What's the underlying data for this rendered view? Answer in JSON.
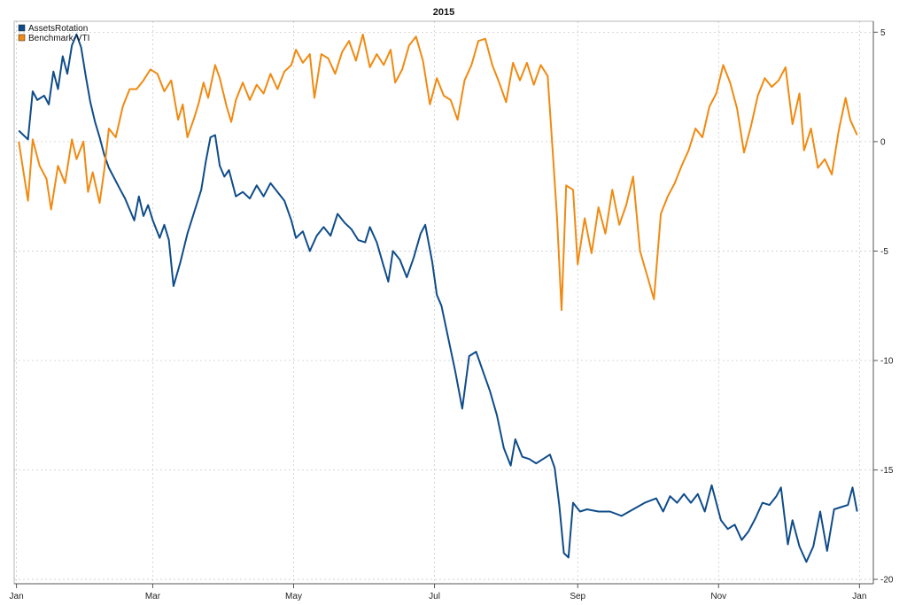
{
  "chart_data": {
    "type": "line",
    "title": "2015",
    "xlabel": "",
    "ylabel": "",
    "x_tick_labels": [
      "Jan",
      "Mar",
      "May",
      "Jul",
      "Sep",
      "Nov",
      "Jan"
    ],
    "x_tick_dates": [
      "2015-01-01",
      "2015-03-01",
      "2015-05-01",
      "2015-07-01",
      "2015-09-01",
      "2015-11-01",
      "2016-01-01"
    ],
    "xlim": [
      "2014-12-31",
      "2016-01-07"
    ],
    "y_ticks": [
      5,
      0,
      -5,
      -10,
      -15,
      -20
    ],
    "ylim": [
      -20.2,
      5.5
    ],
    "y_axis_side": "right",
    "grid": true,
    "legend_position": "top-left",
    "series": [
      {
        "name": "AssetsRotation",
        "color": "#0f4c8a",
        "points": [
          [
            "2015-01-02",
            0.5
          ],
          [
            "2015-01-06",
            0.1
          ],
          [
            "2015-01-08",
            2.3
          ],
          [
            "2015-01-10",
            1.9
          ],
          [
            "2015-01-13",
            2.1
          ],
          [
            "2015-01-15",
            1.7
          ],
          [
            "2015-01-17",
            3.2
          ],
          [
            "2015-01-19",
            2.4
          ],
          [
            "2015-01-21",
            3.9
          ],
          [
            "2015-01-23",
            3.1
          ],
          [
            "2015-01-25",
            4.4
          ],
          [
            "2015-01-27",
            4.9
          ],
          [
            "2015-01-29",
            4.3
          ],
          [
            "2015-01-31",
            3.0
          ],
          [
            "2015-02-02",
            1.8
          ],
          [
            "2015-02-04",
            0.9
          ],
          [
            "2015-02-06",
            0.2
          ],
          [
            "2015-02-08",
            -0.6
          ],
          [
            "2015-02-10",
            -1.2
          ],
          [
            "2015-02-12",
            -1.6
          ],
          [
            "2015-02-15",
            -2.2
          ],
          [
            "2015-02-17",
            -2.6
          ],
          [
            "2015-02-19",
            -3.1
          ],
          [
            "2015-02-21",
            -3.6
          ],
          [
            "2015-02-23",
            -2.5
          ],
          [
            "2015-02-25",
            -3.4
          ],
          [
            "2015-02-27",
            -2.9
          ],
          [
            "2015-03-01",
            -3.6
          ],
          [
            "2015-03-04",
            -4.4
          ],
          [
            "2015-03-06",
            -3.8
          ],
          [
            "2015-03-08",
            -4.5
          ],
          [
            "2015-03-10",
            -6.6
          ],
          [
            "2015-03-13",
            -5.5
          ],
          [
            "2015-03-16",
            -4.2
          ],
          [
            "2015-03-19",
            -3.2
          ],
          [
            "2015-03-22",
            -2.2
          ],
          [
            "2015-03-24",
            -0.9
          ],
          [
            "2015-03-26",
            0.2
          ],
          [
            "2015-03-28",
            0.3
          ],
          [
            "2015-03-30",
            -1.1
          ],
          [
            "2015-04-01",
            -1.6
          ],
          [
            "2015-04-03",
            -1.3
          ],
          [
            "2015-04-06",
            -2.5
          ],
          [
            "2015-04-09",
            -2.3
          ],
          [
            "2015-04-12",
            -2.6
          ],
          [
            "2015-04-15",
            -2.0
          ],
          [
            "2015-04-18",
            -2.5
          ],
          [
            "2015-04-21",
            -1.9
          ],
          [
            "2015-04-24",
            -2.3
          ],
          [
            "2015-04-27",
            -2.7
          ],
          [
            "2015-04-30",
            -3.6
          ],
          [
            "2015-05-02",
            -4.4
          ],
          [
            "2015-05-05",
            -4.1
          ],
          [
            "2015-05-08",
            -5.0
          ],
          [
            "2015-05-11",
            -4.3
          ],
          [
            "2015-05-14",
            -3.9
          ],
          [
            "2015-05-17",
            -4.3
          ],
          [
            "2015-05-20",
            -3.3
          ],
          [
            "2015-05-23",
            -3.7
          ],
          [
            "2015-05-26",
            -4.0
          ],
          [
            "2015-05-29",
            -4.5
          ],
          [
            "2015-06-01",
            -4.6
          ],
          [
            "2015-06-03",
            -3.9
          ],
          [
            "2015-06-06",
            -4.6
          ],
          [
            "2015-06-09",
            -5.7
          ],
          [
            "2015-06-11",
            -6.4
          ],
          [
            "2015-06-13",
            -5.0
          ],
          [
            "2015-06-16",
            -5.4
          ],
          [
            "2015-06-19",
            -6.2
          ],
          [
            "2015-06-22",
            -5.3
          ],
          [
            "2015-06-25",
            -4.2
          ],
          [
            "2015-06-27",
            -3.8
          ],
          [
            "2015-06-30",
            -5.5
          ],
          [
            "2015-07-02",
            -7.0
          ],
          [
            "2015-07-04",
            -7.5
          ],
          [
            "2015-07-07",
            -9.0
          ],
          [
            "2015-07-10",
            -10.5
          ],
          [
            "2015-07-13",
            -12.2
          ],
          [
            "2015-07-16",
            -9.8
          ],
          [
            "2015-07-19",
            -9.6
          ],
          [
            "2015-07-22",
            -10.5
          ],
          [
            "2015-07-25",
            -11.4
          ],
          [
            "2015-07-28",
            -12.5
          ],
          [
            "2015-07-31",
            -14.0
          ],
          [
            "2015-08-03",
            -14.8
          ],
          [
            "2015-08-05",
            -13.6
          ],
          [
            "2015-08-08",
            -14.4
          ],
          [
            "2015-08-11",
            -14.5
          ],
          [
            "2015-08-14",
            -14.7
          ],
          [
            "2015-08-17",
            -14.5
          ],
          [
            "2015-08-20",
            -14.3
          ],
          [
            "2015-08-22",
            -14.9
          ],
          [
            "2015-08-24",
            -16.6
          ],
          [
            "2015-08-26",
            -18.8
          ],
          [
            "2015-08-28",
            -19.0
          ],
          [
            "2015-08-30",
            -16.5
          ],
          [
            "2015-09-02",
            -16.9
          ],
          [
            "2015-09-05",
            -16.8
          ],
          [
            "2015-09-10",
            -16.9
          ],
          [
            "2015-09-15",
            -16.9
          ],
          [
            "2015-09-20",
            -17.1
          ],
          [
            "2015-09-25",
            -16.8
          ],
          [
            "2015-09-30",
            -16.5
          ],
          [
            "2015-10-05",
            -16.3
          ],
          [
            "2015-10-08",
            -16.9
          ],
          [
            "2015-10-11",
            -16.2
          ],
          [
            "2015-10-14",
            -16.5
          ],
          [
            "2015-10-17",
            -16.1
          ],
          [
            "2015-10-20",
            -16.5
          ],
          [
            "2015-10-23",
            -16.1
          ],
          [
            "2015-10-26",
            -16.9
          ],
          [
            "2015-10-29",
            -15.7
          ],
          [
            "2015-11-02",
            -17.3
          ],
          [
            "2015-11-05",
            -17.7
          ],
          [
            "2015-11-08",
            -17.5
          ],
          [
            "2015-11-11",
            -18.2
          ],
          [
            "2015-11-14",
            -17.8
          ],
          [
            "2015-11-17",
            -17.2
          ],
          [
            "2015-11-20",
            -16.5
          ],
          [
            "2015-11-23",
            -16.6
          ],
          [
            "2015-11-26",
            -16.2
          ],
          [
            "2015-11-28",
            -15.8
          ],
          [
            "2015-12-01",
            -18.4
          ],
          [
            "2015-12-03",
            -17.3
          ],
          [
            "2015-12-06",
            -18.5
          ],
          [
            "2015-12-09",
            -19.2
          ],
          [
            "2015-12-12",
            -18.5
          ],
          [
            "2015-12-15",
            -16.9
          ],
          [
            "2015-12-18",
            -18.7
          ],
          [
            "2015-12-21",
            -16.8
          ],
          [
            "2015-12-24",
            -16.7
          ],
          [
            "2015-12-27",
            -16.6
          ],
          [
            "2015-12-29",
            -15.8
          ],
          [
            "2015-12-31",
            -16.9
          ]
        ]
      },
      {
        "name": "Benchmark-VTI",
        "color": "#f08a11",
        "points": [
          [
            "2015-01-02",
            0.0
          ],
          [
            "2015-01-06",
            -2.7
          ],
          [
            "2015-01-08",
            0.1
          ],
          [
            "2015-01-11",
            -1.1
          ],
          [
            "2015-01-14",
            -1.7
          ],
          [
            "2015-01-16",
            -3.1
          ],
          [
            "2015-01-19",
            -1.1
          ],
          [
            "2015-01-22",
            -1.9
          ],
          [
            "2015-01-25",
            0.1
          ],
          [
            "2015-01-27",
            -0.8
          ],
          [
            "2015-01-30",
            0.0
          ],
          [
            "2015-02-01",
            -2.3
          ],
          [
            "2015-02-03",
            -1.4
          ],
          [
            "2015-02-06",
            -2.8
          ],
          [
            "2015-02-08",
            -1.3
          ],
          [
            "2015-02-10",
            0.6
          ],
          [
            "2015-02-13",
            0.2
          ],
          [
            "2015-02-16",
            1.6
          ],
          [
            "2015-02-19",
            2.4
          ],
          [
            "2015-02-22",
            2.4
          ],
          [
            "2015-02-25",
            2.8
          ],
          [
            "2015-02-28",
            3.3
          ],
          [
            "2015-03-03",
            3.1
          ],
          [
            "2015-03-06",
            2.3
          ],
          [
            "2015-03-09",
            2.8
          ],
          [
            "2015-03-12",
            1.0
          ],
          [
            "2015-03-14",
            1.7
          ],
          [
            "2015-03-16",
            0.2
          ],
          [
            "2015-03-19",
            1.1
          ],
          [
            "2015-03-21",
            1.8
          ],
          [
            "2015-03-23",
            2.7
          ],
          [
            "2015-03-25",
            2.0
          ],
          [
            "2015-03-28",
            3.5
          ],
          [
            "2015-03-30",
            2.9
          ],
          [
            "2015-04-02",
            1.6
          ],
          [
            "2015-04-04",
            0.9
          ],
          [
            "2015-04-06",
            1.9
          ],
          [
            "2015-04-09",
            2.7
          ],
          [
            "2015-04-12",
            1.9
          ],
          [
            "2015-04-15",
            2.6
          ],
          [
            "2015-04-18",
            2.2
          ],
          [
            "2015-04-21",
            3.1
          ],
          [
            "2015-04-24",
            2.4
          ],
          [
            "2015-04-27",
            3.2
          ],
          [
            "2015-04-30",
            3.5
          ],
          [
            "2015-05-02",
            4.2
          ],
          [
            "2015-05-05",
            3.6
          ],
          [
            "2015-05-08",
            4.0
          ],
          [
            "2015-05-10",
            2.0
          ],
          [
            "2015-05-13",
            4.0
          ],
          [
            "2015-05-16",
            3.8
          ],
          [
            "2015-05-19",
            3.1
          ],
          [
            "2015-05-22",
            4.1
          ],
          [
            "2015-05-25",
            4.6
          ],
          [
            "2015-05-28",
            3.7
          ],
          [
            "2015-05-31",
            4.9
          ],
          [
            "2015-06-03",
            3.4
          ],
          [
            "2015-06-06",
            4.0
          ],
          [
            "2015-06-09",
            3.5
          ],
          [
            "2015-06-12",
            4.2
          ],
          [
            "2015-06-14",
            2.7
          ],
          [
            "2015-06-17",
            3.3
          ],
          [
            "2015-06-20",
            4.4
          ],
          [
            "2015-06-23",
            4.8
          ],
          [
            "2015-06-26",
            3.7
          ],
          [
            "2015-06-29",
            1.7
          ],
          [
            "2015-07-02",
            2.9
          ],
          [
            "2015-07-05",
            2.1
          ],
          [
            "2015-07-08",
            1.9
          ],
          [
            "2015-07-11",
            1.0
          ],
          [
            "2015-07-14",
            2.8
          ],
          [
            "2015-07-17",
            3.5
          ],
          [
            "2015-07-20",
            4.6
          ],
          [
            "2015-07-23",
            4.7
          ],
          [
            "2015-07-26",
            3.5
          ],
          [
            "2015-07-29",
            2.7
          ],
          [
            "2015-08-01",
            1.8
          ],
          [
            "2015-08-04",
            3.6
          ],
          [
            "2015-08-07",
            2.8
          ],
          [
            "2015-08-10",
            3.6
          ],
          [
            "2015-08-13",
            2.6
          ],
          [
            "2015-08-16",
            3.5
          ],
          [
            "2015-08-19",
            3.0
          ],
          [
            "2015-08-21",
            -0.2
          ],
          [
            "2015-08-23",
            -3.4
          ],
          [
            "2015-08-25",
            -7.7
          ],
          [
            "2015-08-27",
            -2.0
          ],
          [
            "2015-08-30",
            -2.2
          ],
          [
            "2015-09-01",
            -5.6
          ],
          [
            "2015-09-04",
            -3.5
          ],
          [
            "2015-09-07",
            -5.1
          ],
          [
            "2015-09-10",
            -3.0
          ],
          [
            "2015-09-13",
            -4.2
          ],
          [
            "2015-09-16",
            -2.2
          ],
          [
            "2015-09-19",
            -3.8
          ],
          [
            "2015-09-22",
            -2.9
          ],
          [
            "2015-09-25",
            -1.6
          ],
          [
            "2015-09-28",
            -5.0
          ],
          [
            "2015-10-01",
            -6.1
          ],
          [
            "2015-10-04",
            -7.2
          ],
          [
            "2015-10-07",
            -3.3
          ],
          [
            "2015-10-10",
            -2.5
          ],
          [
            "2015-10-13",
            -1.9
          ],
          [
            "2015-10-16",
            -1.1
          ],
          [
            "2015-10-19",
            -0.4
          ],
          [
            "2015-10-22",
            0.6
          ],
          [
            "2015-10-25",
            0.2
          ],
          [
            "2015-10-28",
            1.6
          ],
          [
            "2015-10-31",
            2.2
          ],
          [
            "2015-11-03",
            3.5
          ],
          [
            "2015-11-06",
            2.7
          ],
          [
            "2015-11-09",
            1.5
          ],
          [
            "2015-11-12",
            -0.5
          ],
          [
            "2015-11-15",
            0.7
          ],
          [
            "2015-11-18",
            2.1
          ],
          [
            "2015-11-21",
            2.9
          ],
          [
            "2015-11-24",
            2.5
          ],
          [
            "2015-11-27",
            2.8
          ],
          [
            "2015-11-30",
            3.4
          ],
          [
            "2015-12-03",
            0.8
          ],
          [
            "2015-12-06",
            2.2
          ],
          [
            "2015-12-08",
            -0.4
          ],
          [
            "2015-12-11",
            0.6
          ],
          [
            "2015-12-14",
            -1.2
          ],
          [
            "2015-12-17",
            -0.8
          ],
          [
            "2015-12-20",
            -1.5
          ],
          [
            "2015-12-23",
            0.5
          ],
          [
            "2015-12-26",
            2.0
          ],
          [
            "2015-12-28",
            1.0
          ],
          [
            "2015-12-31",
            0.3
          ]
        ]
      }
    ]
  }
}
